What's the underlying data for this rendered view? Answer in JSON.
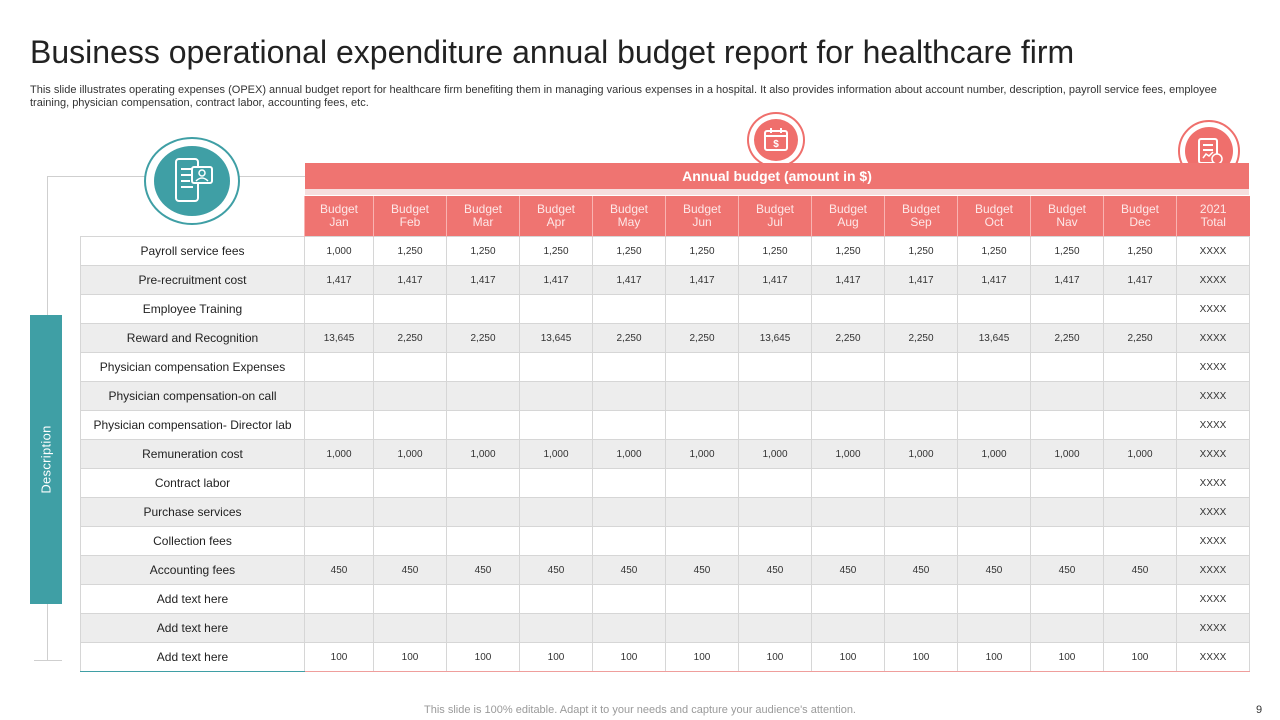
{
  "title": "Business operational expenditure annual budget report for healthcare firm",
  "subtitle": "This slide illustrates operating expenses (OPEX) annual budget report for healthcare firm benefiting them in managing various expenses in a hospital. It also provides information about account number, description, payroll service fees, employee training, physician compensation, contract labor, accounting fees, etc.",
  "side_label": "Description",
  "table": {
    "banner": "Annual budget (amount in $)",
    "headers": [
      "Budget Jan",
      "Budget Feb",
      "Budget Mar",
      "Budget Apr",
      "Budget May",
      "Budget Jun",
      "Budget Jul",
      "Budget Aug",
      "Budget Sep",
      "Budget Oct",
      "Budget Nav",
      "Budget Dec",
      "2021 Total"
    ],
    "rows": [
      {
        "label": "Payroll service fees",
        "values": [
          "1,000",
          "1,250",
          "1,250",
          "1,250",
          "1,250",
          "1,250",
          "1,250",
          "1,250",
          "1,250",
          "1,250",
          "1,250",
          "1,250",
          "XXXX"
        ]
      },
      {
        "label": "Pre-recruitment cost",
        "values": [
          "1,417",
          "1,417",
          "1,417",
          "1,417",
          "1,417",
          "1,417",
          "1,417",
          "1,417",
          "1,417",
          "1,417",
          "1,417",
          "1,417",
          "XXXX"
        ]
      },
      {
        "label": "Employee Training",
        "values": [
          "",
          "",
          "",
          "",
          "",
          "",
          "",
          "",
          "",
          "",
          "",
          "",
          "XXXX"
        ]
      },
      {
        "label": "Reward and Recognition",
        "values": [
          "13,645",
          "2,250",
          "2,250",
          "13,645",
          "2,250",
          "2,250",
          "13,645",
          "2,250",
          "2,250",
          "13,645",
          "2,250",
          "2,250",
          "XXXX"
        ]
      },
      {
        "label": "Physician compensation Expenses",
        "values": [
          "",
          "",
          "",
          "",
          "",
          "",
          "",
          "",
          "",
          "",
          "",
          "",
          "XXXX"
        ]
      },
      {
        "label": "Physician compensation-on call",
        "values": [
          "",
          "",
          "",
          "",
          "",
          "",
          "",
          "",
          "",
          "",
          "",
          "",
          "XXXX"
        ]
      },
      {
        "label": "Physician compensation- Director lab",
        "values": [
          "",
          "",
          "",
          "",
          "",
          "",
          "",
          "",
          "",
          "",
          "",
          "",
          "XXXX"
        ]
      },
      {
        "label": "Remuneration cost",
        "values": [
          "1,000",
          "1,000",
          "1,000",
          "1,000",
          "1,000",
          "1,000",
          "1,000",
          "1,000",
          "1,000",
          "1,000",
          "1,000",
          "1,000",
          "XXXX"
        ]
      },
      {
        "label": "Contract labor",
        "values": [
          "",
          "",
          "",
          "",
          "",
          "",
          "",
          "",
          "",
          "",
          "",
          "",
          "XXXX"
        ]
      },
      {
        "label": "Purchase services",
        "values": [
          "",
          "",
          "",
          "",
          "",
          "",
          "",
          "",
          "",
          "",
          "",
          "",
          "XXXX"
        ]
      },
      {
        "label": "Collection fees",
        "values": [
          "",
          "",
          "",
          "",
          "",
          "",
          "",
          "",
          "",
          "",
          "",
          "",
          "XXXX"
        ]
      },
      {
        "label": "Accounting fees",
        "values": [
          "450",
          "450",
          "450",
          "450",
          "450",
          "450",
          "450",
          "450",
          "450",
          "450",
          "450",
          "450",
          "XXXX"
        ]
      },
      {
        "label": "Add text here",
        "values": [
          "",
          "",
          "",
          "",
          "",
          "",
          "",
          "",
          "",
          "",
          "",
          "",
          "XXXX"
        ]
      },
      {
        "label": "Add text here",
        "values": [
          "",
          "",
          "",
          "",
          "",
          "",
          "",
          "",
          "",
          "",
          "",
          "",
          "XXXX"
        ]
      },
      {
        "label": "Add text here",
        "values": [
          "100",
          "100",
          "100",
          "100",
          "100",
          "100",
          "100",
          "100",
          "100",
          "100",
          "100",
          "100",
          "XXXX"
        ]
      }
    ]
  },
  "icons": {
    "teal": "mobile-profile-icon",
    "calendar": "calendar-dollar-icon",
    "report": "financial-report-icon"
  },
  "colors": {
    "accent": "#ef7471",
    "teal": "#3f9fa5",
    "row_alt": "#ededed"
  },
  "footer": "This slide is 100% editable. Adapt it to your needs and capture your audience's attention.",
  "page_number": "9"
}
